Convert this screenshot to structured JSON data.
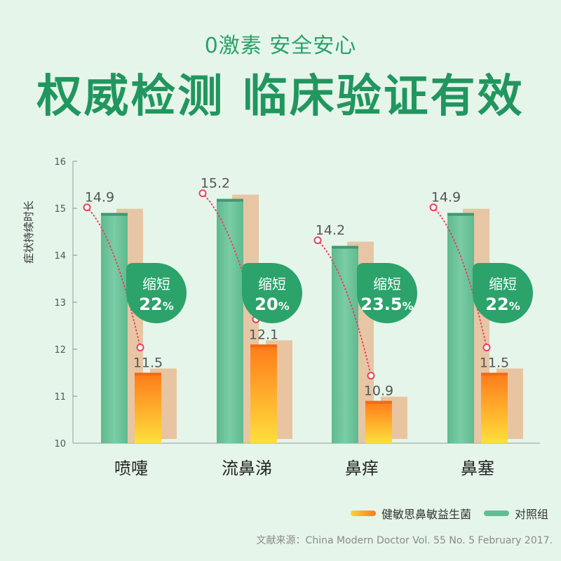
{
  "header": {
    "subtitle": "0激素 安全安心",
    "title": "权威检测 临床验证有效"
  },
  "chart_data": {
    "type": "bar",
    "ylabel": "症状持续时长",
    "ylim": [
      10,
      16
    ],
    "yticks": [
      "10",
      "11",
      "12",
      "13",
      "14",
      "15",
      "16"
    ],
    "categories": [
      "喷嚏",
      "流鼻涕",
      "鼻痒",
      "鼻塞"
    ],
    "series": [
      {
        "name": "对照组",
        "values": [
          14.9,
          15.2,
          14.2,
          14.9
        ],
        "labels": [
          "14.9",
          "15.2",
          "14.2",
          "14.9"
        ]
      },
      {
        "name": "健敏思鼻敏益生菌",
        "values": [
          11.5,
          12.1,
          10.9,
          11.5
        ],
        "labels": [
          "11.5",
          "12.1",
          "10.9",
          "11.5"
        ]
      }
    ],
    "reductions": [
      {
        "top": "缩短",
        "value": "22",
        "unit": "%"
      },
      {
        "top": "缩短",
        "value": "20",
        "unit": "%"
      },
      {
        "top": "缩短",
        "value": "23.5",
        "unit": "%"
      },
      {
        "top": "缩短",
        "value": "22",
        "unit": "%"
      }
    ],
    "colors": {
      "control": "#6cc29b",
      "control_dark": "#3f9a72",
      "treatment_top": "#ff7a1a",
      "treatment_bottom": "#ffdf3c",
      "bubble": "#2ba36b",
      "dots": "#e8425a"
    }
  },
  "legend": {
    "treatment": "健敏思鼻敏益生菌",
    "control": "对照组"
  },
  "source": "文献来源：China Modern Doctor Vol. 55 No. 5 February 2017."
}
